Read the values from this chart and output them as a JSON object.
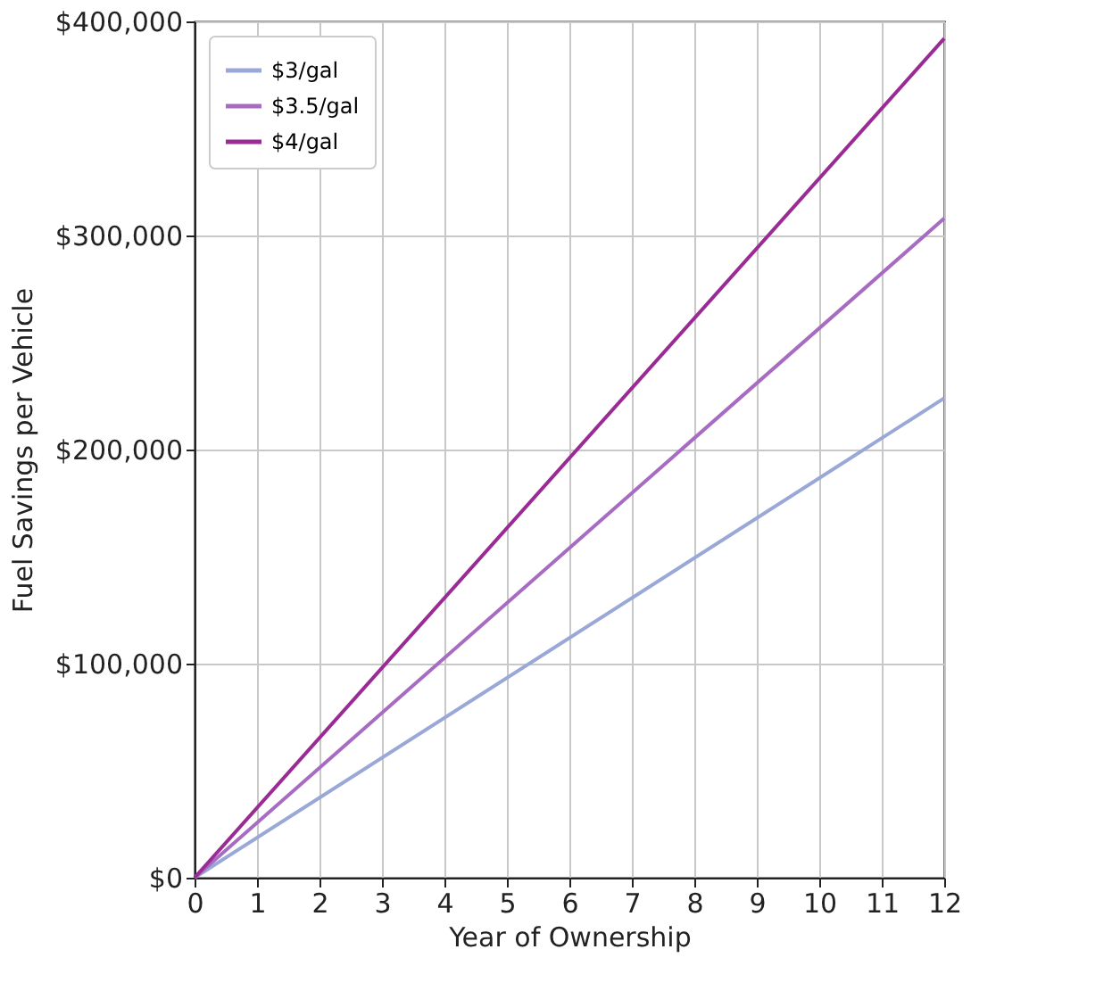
{
  "chart_data": {
    "type": "line",
    "xlabel": "Year of Ownership",
    "ylabel": "Fuel Savings per Vehicle",
    "x": [
      0,
      12
    ],
    "series": [
      {
        "name": "$3/gal",
        "color": "#9aa8d8",
        "values": [
          0,
          224000
        ]
      },
      {
        "name": "$3.5/gal",
        "color": "#a76cc2",
        "values": [
          0,
          308000
        ]
      },
      {
        "name": "$4/gal",
        "color": "#9a2b94",
        "values": [
          0,
          392000
        ]
      }
    ],
    "xlim": [
      0,
      12
    ],
    "xticks": [
      0,
      1,
      2,
      3,
      4,
      5,
      6,
      7,
      8,
      9,
      10,
      11,
      12
    ],
    "ylim": [
      0,
      400000
    ],
    "yticks": [
      {
        "value": 0,
        "label": "$0"
      },
      {
        "value": 100000,
        "label": "$100,000"
      },
      {
        "value": 200000,
        "label": "$200,000"
      },
      {
        "value": 300000,
        "label": "$300,000"
      },
      {
        "value": 400000,
        "label": "$400,000"
      }
    ],
    "grid": true,
    "legend": "top left",
    "marker": "none",
    "line_style": "solid"
  }
}
